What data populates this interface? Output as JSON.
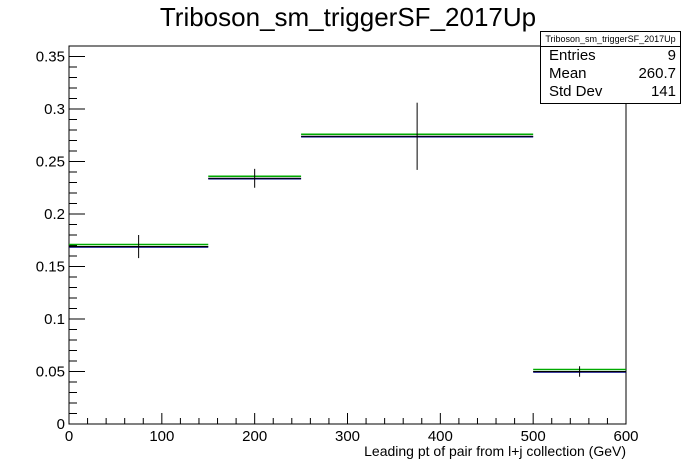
{
  "title": "Triboson_sm_triggerSF_2017Up",
  "stats": {
    "name": "Triboson_sm_triggerSF_2017Up",
    "rows": [
      {
        "label": "Entries",
        "value": "9"
      },
      {
        "label": "Mean",
        "value": "260.7"
      },
      {
        "label": "Std Dev",
        "value": "141"
      }
    ]
  },
  "chart_data": {
    "type": "histogram",
    "title": "Triboson_sm_triggerSF_2017Up",
    "xlabel": "Leading pt of pair from l+j collection (GeV)",
    "ylabel": "",
    "xlim": [
      0,
      600
    ],
    "ylim": [
      0,
      0.36
    ],
    "xticks": [
      0,
      100,
      200,
      300,
      400,
      500,
      600
    ],
    "yticks": [
      0,
      0.05,
      0.1,
      0.15,
      0.2,
      0.25,
      0.3,
      0.35
    ],
    "xtick_labels": [
      "0",
      "100",
      "200",
      "300",
      "400",
      "500",
      "600"
    ],
    "ytick_labels": [
      "0",
      "0.05",
      "0.1",
      "0.15",
      "0.2",
      "0.25",
      "0.3",
      "0.35"
    ],
    "bins": [
      {
        "xlow": 0,
        "xhigh": 150,
        "value": 0.169,
        "error": 0.011
      },
      {
        "xlow": 150,
        "xhigh": 250,
        "value": 0.234,
        "error": 0.009
      },
      {
        "xlow": 250,
        "xhigh": 500,
        "value": 0.274,
        "error": 0.032
      },
      {
        "xlow": 500,
        "xhigh": 600,
        "value": 0.05,
        "error": 0.005
      }
    ],
    "colors": {
      "data": "#000000",
      "variation": "#00aa00",
      "central": "#000080"
    },
    "grid": false,
    "legend": "none"
  }
}
